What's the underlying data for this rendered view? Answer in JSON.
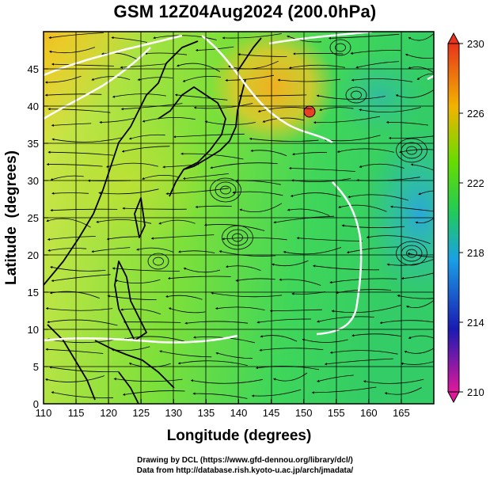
{
  "title": "GSM 12Z04Aug2024 (200.0hPa)",
  "map": {
    "x_axis": {
      "label": "Longitude (degrees)",
      "range": [
        110,
        170
      ],
      "ticks": [
        "110",
        "115",
        "120",
        "125",
        "130",
        "135",
        "140",
        "145",
        "150",
        "155",
        "160",
        "165"
      ]
    },
    "y_axis": {
      "label": "Latitude  (degrees)",
      "range": [
        0,
        50
      ],
      "ticks": [
        "0",
        "5",
        "10",
        "15",
        "20",
        "25",
        "30",
        "35",
        "40",
        "45"
      ]
    },
    "grid": true,
    "layers": [
      "temperature shading",
      "streamlines",
      "coastlines",
      "white isotherm contours"
    ]
  },
  "colorbar": {
    "min": 210,
    "max": 230,
    "tick_labels": [
      "230",
      "226",
      "222",
      "218",
      "214",
      "210"
    ],
    "colors": [
      "#e0199b",
      "#1a1ab3",
      "#1aa0e6",
      "#22cc55",
      "#66dd00",
      "#f2b300",
      "#e8341c"
    ]
  },
  "credits": {
    "line1": "Drawing by DCL (https://www.gfd-dennou.org/library/dcl/)",
    "line2": "Data from http://database.rish.kyoto-u.ac.jp/arch/jmadata/"
  }
}
